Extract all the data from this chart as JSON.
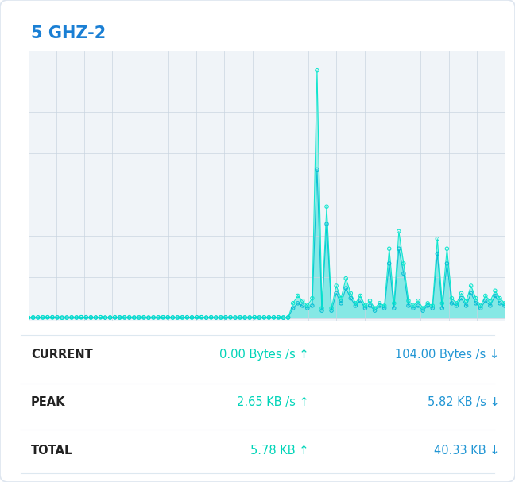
{
  "title": "5 GHZ-2",
  "title_color": "#1a7fd4",
  "background_color": "#ffffff",
  "chart_bg_color": "#f0f4f8",
  "grid_color": "#c8d4e0",
  "line_color_up": "#00e5cc",
  "line_color_down": "#00bcd4",
  "fill_color_up": "#00e5cc",
  "fill_color_down": "#80d8e8",
  "stats": [
    {
      "label": "CURRENT",
      "up": "0.00 Bytes /s",
      "up_arrow": "↑",
      "down": "104.00 Bytes /s",
      "down_arrow": "↓"
    },
    {
      "label": "PEAK",
      "up": "2.65 KB /s",
      "up_arrow": "↑",
      "down": "5.82 KB /s",
      "down_arrow": "↓"
    },
    {
      "label": "TOTAL",
      "up": "5.78 KB",
      "up_arrow": "↑",
      "down": "40.33 KB",
      "down_arrow": "↓"
    }
  ],
  "stat_label_color": "#222222",
  "stat_value_color_up": "#00d4b8",
  "stat_value_color_down": "#2196d4",
  "n_points": 100,
  "figsize": [
    6.48,
    6.07
  ],
  "dpi": 100
}
